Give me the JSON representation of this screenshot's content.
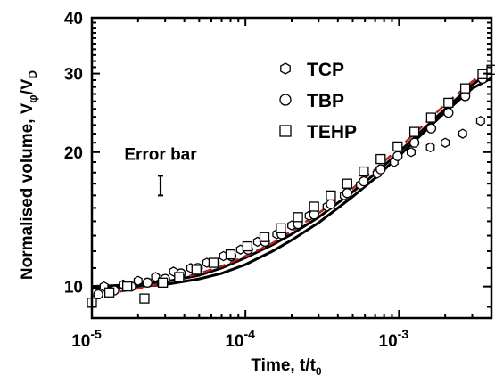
{
  "chart_data": {
    "type": "scatter",
    "xlabel": {
      "main": "Time, t/t",
      "sub": "0"
    },
    "ylabel": {
      "main": "Normalised volume, V",
      "sub1": "φ",
      "mid": "/V",
      "sub2": "D"
    },
    "x_scale": "log",
    "y_scale": "log",
    "xlim": [
      1e-05,
      0.004
    ],
    "ylim": [
      8.5,
      40
    ],
    "x_ticks": [
      {
        "value": 1e-05,
        "base": "10",
        "exp": "-5"
      },
      {
        "value": 0.0001,
        "base": "10",
        "exp": "-4"
      },
      {
        "value": 0.001,
        "base": "10",
        "exp": "-3"
      }
    ],
    "y_ticks": [
      {
        "value": 10,
        "label": "10"
      },
      {
        "value": 20,
        "label": "20"
      },
      {
        "value": 30,
        "label": "30"
      },
      {
        "value": 40,
        "label": "40"
      }
    ],
    "grid": false,
    "legend_position": "top-right",
    "series": [
      {
        "name": "TCP",
        "marker": "hexagon",
        "x": [
          1.2e-05,
          1.6e-05,
          2e-05,
          2.6e-05,
          3.4e-05,
          4.4e-05,
          5.6e-05,
          7.2e-05,
          9.3e-05,
          0.00012,
          0.00016,
          0.0002,
          0.00026,
          0.00034,
          0.00044,
          0.00056,
          0.00072,
          0.00093,
          0.0012,
          0.0016,
          0.002,
          0.0026,
          0.0034
        ],
        "y": [
          10.0,
          10.1,
          10.3,
          10.5,
          10.8,
          11.0,
          11.3,
          11.7,
          12.1,
          12.6,
          13.1,
          13.7,
          14.4,
          15.1,
          16.0,
          16.9,
          17.9,
          19.0,
          20.0,
          20.5,
          21.0,
          22.0,
          23.5
        ]
      },
      {
        "name": "TBP",
        "marker": "circle",
        "x": [
          1.1e-05,
          1.4e-05,
          1.8e-05,
          2.3e-05,
          3e-05,
          3.8e-05,
          4.9e-05,
          6.3e-05,
          8.1e-05,
          0.000104,
          0.000134,
          0.000172,
          0.00022,
          0.00028,
          0.00036,
          0.00046,
          0.00059,
          0.00076,
          0.00098,
          0.00126,
          0.00162,
          0.0021,
          0.0027,
          0.0035
        ],
        "y": [
          9.6,
          9.8,
          10.0,
          10.2,
          10.4,
          10.7,
          11.0,
          11.3,
          11.7,
          12.1,
          12.6,
          13.1,
          13.8,
          14.5,
          15.3,
          16.2,
          17.2,
          18.3,
          19.6,
          21.0,
          22.6,
          24.5,
          26.7,
          29.2
        ]
      },
      {
        "name": "TEHP",
        "marker": "square",
        "x": [
          1e-05,
          1.3e-05,
          1.7e-05,
          2.2e-05,
          2.9e-05,
          3.7e-05,
          4.8e-05,
          6.2e-05,
          8e-05,
          0.000103,
          0.000133,
          0.00017,
          0.00022,
          0.00028,
          0.00036,
          0.00046,
          0.00059,
          0.00076,
          0.00098,
          0.00126,
          0.00162,
          0.0021,
          0.0027,
          0.0035,
          0.004
        ],
        "y": [
          9.2,
          9.7,
          10.0,
          9.4,
          10.2,
          10.5,
          10.9,
          11.3,
          11.8,
          12.3,
          12.9,
          13.5,
          14.3,
          15.1,
          16.0,
          17.0,
          18.1,
          19.3,
          20.6,
          22.2,
          23.9,
          25.8,
          27.8,
          29.9,
          30.6
        ]
      }
    ],
    "fit_curves": [
      {
        "color": "#000000",
        "style": "solid",
        "x": [
          1e-05,
          2e-05,
          3e-05,
          5e-05,
          7e-05,
          0.0001,
          0.00015,
          0.0002,
          0.0003,
          0.0005,
          0.0007,
          0.001,
          0.0015,
          0.002,
          0.003,
          0.004
        ],
        "y": [
          10.0,
          10.1,
          10.25,
          10.6,
          11.0,
          11.6,
          12.4,
          13.1,
          14.3,
          16.3,
          17.9,
          20.0,
          22.8,
          25.0,
          28.3,
          30.5
        ]
      },
      {
        "color": "#000000",
        "style": "solid",
        "x": [
          1e-05,
          2e-05,
          3e-05,
          5e-05,
          7e-05,
          0.0001,
          0.00015,
          0.0002,
          0.0003,
          0.0005,
          0.0007,
          0.001,
          0.0015,
          0.002,
          0.003,
          0.004
        ],
        "y": [
          9.9,
          10.0,
          10.1,
          10.4,
          10.7,
          11.2,
          12.0,
          12.7,
          13.9,
          15.9,
          17.5,
          19.6,
          22.4,
          24.6,
          27.8,
          29.3
        ]
      },
      {
        "color": "#b22222",
        "style": "dashed",
        "x": [
          1e-05,
          2e-05,
          3e-05,
          5e-05,
          7e-05,
          0.0001,
          0.00015,
          0.0002,
          0.0003,
          0.0005,
          0.0007,
          0.001,
          0.0015,
          0.002,
          0.003,
          0.004
        ],
        "y": [
          9.5,
          9.9,
          10.2,
          10.7,
          11.1,
          11.7,
          12.5,
          13.3,
          14.6,
          16.6,
          18.3,
          20.4,
          23.3,
          25.6,
          28.8,
          30.9
        ]
      }
    ],
    "annotation": {
      "text": "Error bar",
      "x": 2.8e-05,
      "y": 16.8,
      "err_low": 16.0,
      "err_high": 17.7
    }
  }
}
